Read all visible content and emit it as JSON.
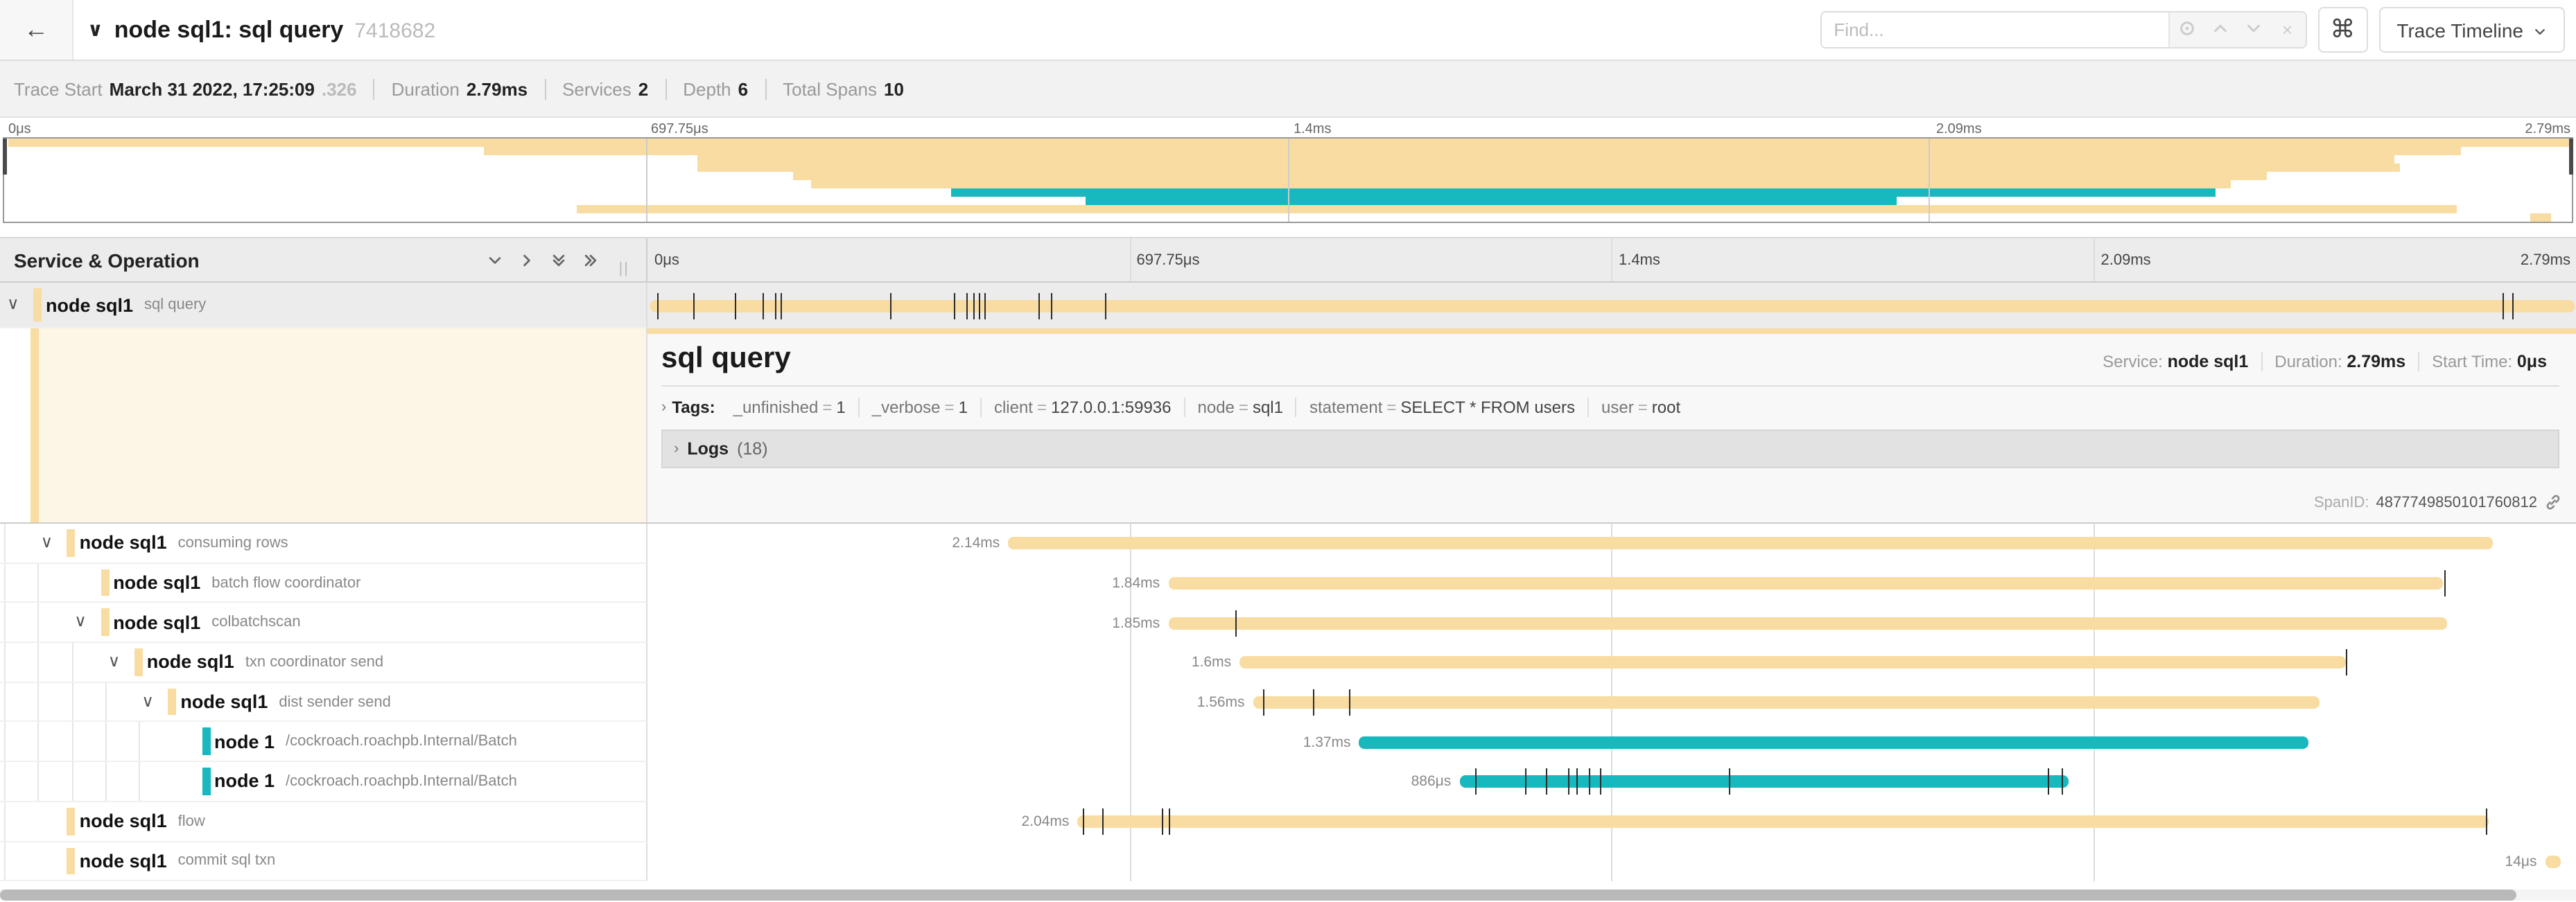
{
  "colors": {
    "tan": "#F8DCA1",
    "teal": "#17B8BE",
    "selected_bg": "#ececec"
  },
  "header": {
    "back_icon": "←",
    "collapse_icon": "∨",
    "title": "node sql1: sql query",
    "trace_id": "7418682",
    "find_placeholder": "Find...",
    "find_clear_icon": "×",
    "shortcut_icon": "⌘",
    "view_button_label": "Trace Timeline"
  },
  "trace_info": {
    "items": [
      {
        "label": "Trace Start",
        "value": "March 31 2022, 17:25:09",
        "suffix": ".326"
      },
      {
        "label": "Duration",
        "value": "2.79ms",
        "suffix": ""
      },
      {
        "label": "Services",
        "value": "2",
        "suffix": ""
      },
      {
        "label": "Depth",
        "value": "6",
        "suffix": ""
      },
      {
        "label": "Total Spans",
        "value": "10",
        "suffix": ""
      }
    ]
  },
  "ruler": {
    "ticks": [
      "0μs",
      "697.75μs",
      "1.4ms",
      "2.09ms",
      "2.79ms"
    ]
  },
  "tree_header": {
    "title": "Service & Operation"
  },
  "detail": {
    "title": "sql query",
    "service_label": "Service:",
    "service": "node sql1",
    "duration_label": "Duration:",
    "duration": "2.79ms",
    "start_label": "Start Time:",
    "start": "0μs",
    "tags_label": "Tags:",
    "tags": [
      {
        "key": "_unfinished",
        "value": "1"
      },
      {
        "key": "_verbose",
        "value": "1"
      },
      {
        "key": "client",
        "value": "127.0.0.1:59936"
      },
      {
        "key": "node",
        "value": "sql1"
      },
      {
        "key": "statement",
        "value": "SELECT * FROM users"
      },
      {
        "key": "user",
        "value": "root"
      }
    ],
    "logs_label": "Logs",
    "logs_count": "(18)",
    "span_id_label": "SpanID:",
    "span_id": "4877749850101760812"
  },
  "spans": [
    {
      "service": "node sql1",
      "operation": "sql query",
      "depth": 0,
      "color": "tan",
      "selected": true,
      "has_children": true,
      "start_pct": 0.15,
      "end_pct": 99.9,
      "duration_label": "",
      "ticks": [
        0.5,
        2.4,
        4.5,
        6.0,
        6.6,
        6.9,
        12.6,
        15.9,
        16.5,
        16.9,
        17.2,
        17.5,
        20.3,
        20.9,
        23.7,
        96.2,
        96.7
      ]
    },
    {
      "service": "node sql1",
      "operation": "consuming rows",
      "depth": 1,
      "color": "tan",
      "selected": false,
      "has_children": true,
      "start_pct": 18.7,
      "end_pct": 95.7,
      "duration_label": "2.14ms",
      "ticks": []
    },
    {
      "service": "node sql1",
      "operation": "batch flow coordinator",
      "depth": 2,
      "color": "tan",
      "selected": false,
      "has_children": false,
      "start_pct": 27.0,
      "end_pct": 93.1,
      "duration_label": "1.84ms",
      "ticks": [
        93.2
      ]
    },
    {
      "service": "node sql1",
      "operation": "colbatchscan",
      "depth": 2,
      "color": "tan",
      "selected": false,
      "has_children": true,
      "start_pct": 27.0,
      "end_pct": 93.3,
      "duration_label": "1.85ms",
      "ticks": [
        30.5
      ]
    },
    {
      "service": "node sql1",
      "operation": "txn coordinator send",
      "depth": 3,
      "color": "tan",
      "selected": false,
      "has_children": true,
      "start_pct": 30.7,
      "end_pct": 88.1,
      "duration_label": "1.6ms",
      "ticks": [
        88.1
      ]
    },
    {
      "service": "node sql1",
      "operation": "dist sender send",
      "depth": 4,
      "color": "tan",
      "selected": false,
      "has_children": true,
      "start_pct": 31.4,
      "end_pct": 86.7,
      "duration_label": "1.56ms",
      "ticks": [
        31.9,
        34.5,
        36.4
      ]
    },
    {
      "service": "node 1",
      "operation": "/cockroach.roachpb.Internal/Batch",
      "depth": 5,
      "color": "teal",
      "selected": false,
      "has_children": false,
      "start_pct": 36.9,
      "end_pct": 86.1,
      "duration_label": "1.37ms",
      "ticks": []
    },
    {
      "service": "node 1",
      "operation": "/cockroach.roachpb.Internal/Batch",
      "depth": 5,
      "color": "teal",
      "selected": false,
      "has_children": false,
      "start_pct": 42.1,
      "end_pct": 73.7,
      "duration_label": "886μs",
      "ticks": [
        42.9,
        45.5,
        46.6,
        47.7,
        48.2,
        48.8,
        49.4,
        56.1,
        72.6,
        73.3
      ]
    },
    {
      "service": "node sql1",
      "operation": "flow",
      "depth": 1,
      "color": "tan",
      "selected": false,
      "has_children": false,
      "start_pct": 22.3,
      "end_pct": 95.5,
      "duration_label": "2.04ms",
      "ticks": [
        22.6,
        23.6,
        26.7,
        27.0,
        95.3
      ]
    },
    {
      "service": "node sql1",
      "operation": "commit sql txn",
      "depth": 1,
      "color": "tan",
      "selected": false,
      "has_children": false,
      "start_pct": 98.4,
      "end_pct": 99.2,
      "duration_label": "14μs",
      "ticks": []
    }
  ]
}
